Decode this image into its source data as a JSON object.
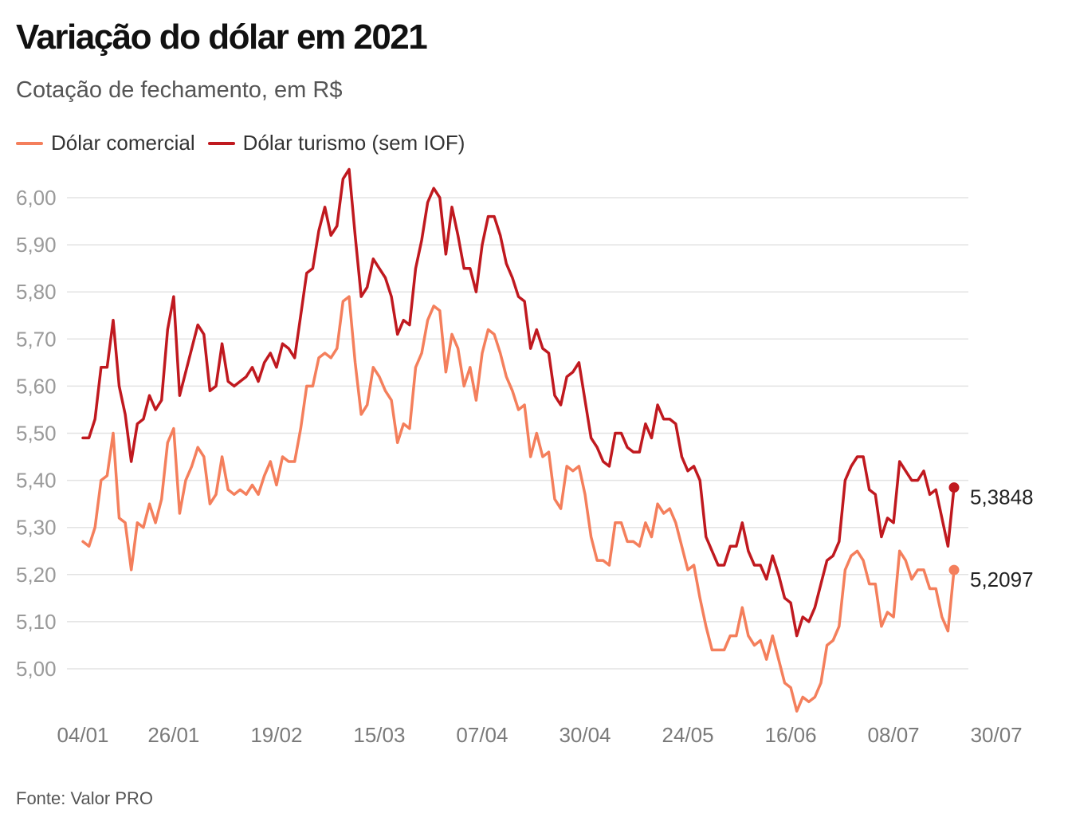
{
  "chart_data": {
    "type": "line",
    "title": "Variação do dólar em 2021",
    "subtitle": "Cotação de fechamento, em R$",
    "source": "Fonte: Valor PRO",
    "ylim": [
      4.9,
      6.06
    ],
    "yticks": [
      "6,00",
      "5,90",
      "5,80",
      "5,70",
      "5,60",
      "5,50",
      "5,40",
      "5,30",
      "5,20",
      "5,10",
      "5,00"
    ],
    "ytick_values": [
      6.0,
      5.9,
      5.8,
      5.7,
      5.6,
      5.5,
      5.4,
      5.3,
      5.2,
      5.1,
      5.0
    ],
    "xtick_labels": [
      "04/01",
      "26/01",
      "19/02",
      "15/03",
      "07/04",
      "30/04",
      "24/05",
      "16/06",
      "08/07",
      "30/07"
    ],
    "xtick_index": [
      0,
      15,
      32,
      49,
      66,
      83,
      100,
      117,
      134,
      151
    ],
    "grid": true,
    "legend_position": "top-left",
    "series": [
      {
        "name": "Dólar comercial",
        "color": "#f47f5c",
        "end_label": "5,2097",
        "values": [
          5.27,
          5.26,
          5.3,
          5.4,
          5.41,
          5.5,
          5.32,
          5.31,
          5.21,
          5.31,
          5.3,
          5.35,
          5.31,
          5.36,
          5.48,
          5.51,
          5.33,
          5.4,
          5.43,
          5.47,
          5.45,
          5.35,
          5.37,
          5.45,
          5.38,
          5.37,
          5.38,
          5.37,
          5.39,
          5.37,
          5.41,
          5.44,
          5.39,
          5.45,
          5.44,
          5.44,
          5.51,
          5.6,
          5.6,
          5.66,
          5.67,
          5.66,
          5.68,
          5.78,
          5.79,
          5.65,
          5.54,
          5.56,
          5.64,
          5.62,
          5.59,
          5.57,
          5.48,
          5.52,
          5.51,
          5.64,
          5.67,
          5.74,
          5.77,
          5.76,
          5.63,
          5.71,
          5.68,
          5.6,
          5.64,
          5.57,
          5.67,
          5.72,
          5.71,
          5.67,
          5.62,
          5.59,
          5.55,
          5.56,
          5.45,
          5.5,
          5.45,
          5.46,
          5.36,
          5.34,
          5.43,
          5.42,
          5.43,
          5.37,
          5.28,
          5.23,
          5.23,
          5.22,
          5.31,
          5.31,
          5.27,
          5.27,
          5.26,
          5.31,
          5.28,
          5.35,
          5.33,
          5.34,
          5.31,
          5.26,
          5.21,
          5.22,
          5.15,
          5.09,
          5.04,
          5.04,
          5.04,
          5.07,
          5.07,
          5.13,
          5.07,
          5.05,
          5.06,
          5.02,
          5.07,
          5.02,
          4.97,
          4.96,
          4.91,
          4.94,
          4.93,
          4.94,
          4.97,
          5.05,
          5.06,
          5.09,
          5.21,
          5.24,
          5.25,
          5.23,
          5.18,
          5.18,
          5.09,
          5.12,
          5.11,
          5.25,
          5.23,
          5.19,
          5.21,
          5.21,
          5.17,
          5.17,
          5.11,
          5.08,
          5.2097
        ]
      },
      {
        "name": "Dólar turismo (sem IOF)",
        "color": "#c0191f",
        "end_label": "5,3848",
        "values": [
          5.49,
          5.49,
          5.53,
          5.64,
          5.64,
          5.74,
          5.6,
          5.54,
          5.44,
          5.52,
          5.53,
          5.58,
          5.55,
          5.57,
          5.72,
          5.79,
          5.58,
          5.63,
          5.68,
          5.73,
          5.71,
          5.59,
          5.6,
          5.69,
          5.61,
          5.6,
          5.61,
          5.62,
          5.64,
          5.61,
          5.65,
          5.67,
          5.64,
          5.69,
          5.68,
          5.66,
          5.75,
          5.84,
          5.85,
          5.93,
          5.98,
          5.92,
          5.94,
          6.04,
          6.06,
          5.92,
          5.79,
          5.81,
          5.87,
          5.85,
          5.83,
          5.79,
          5.71,
          5.74,
          5.73,
          5.85,
          5.91,
          5.99,
          6.02,
          6.0,
          5.88,
          5.98,
          5.92,
          5.85,
          5.85,
          5.8,
          5.9,
          5.96,
          5.96,
          5.92,
          5.86,
          5.83,
          5.79,
          5.78,
          5.68,
          5.72,
          5.68,
          5.67,
          5.58,
          5.56,
          5.62,
          5.63,
          5.65,
          5.57,
          5.49,
          5.47,
          5.44,
          5.43,
          5.5,
          5.5,
          5.47,
          5.46,
          5.46,
          5.52,
          5.49,
          5.56,
          5.53,
          5.53,
          5.52,
          5.45,
          5.42,
          5.43,
          5.4,
          5.28,
          5.25,
          5.22,
          5.22,
          5.26,
          5.26,
          5.31,
          5.25,
          5.22,
          5.22,
          5.19,
          5.24,
          5.2,
          5.15,
          5.14,
          5.07,
          5.11,
          5.1,
          5.13,
          5.18,
          5.23,
          5.24,
          5.27,
          5.4,
          5.43,
          5.45,
          5.45,
          5.38,
          5.37,
          5.28,
          5.32,
          5.31,
          5.44,
          5.42,
          5.4,
          5.4,
          5.42,
          5.37,
          5.38,
          5.32,
          5.26,
          5.3848
        ]
      }
    ]
  }
}
